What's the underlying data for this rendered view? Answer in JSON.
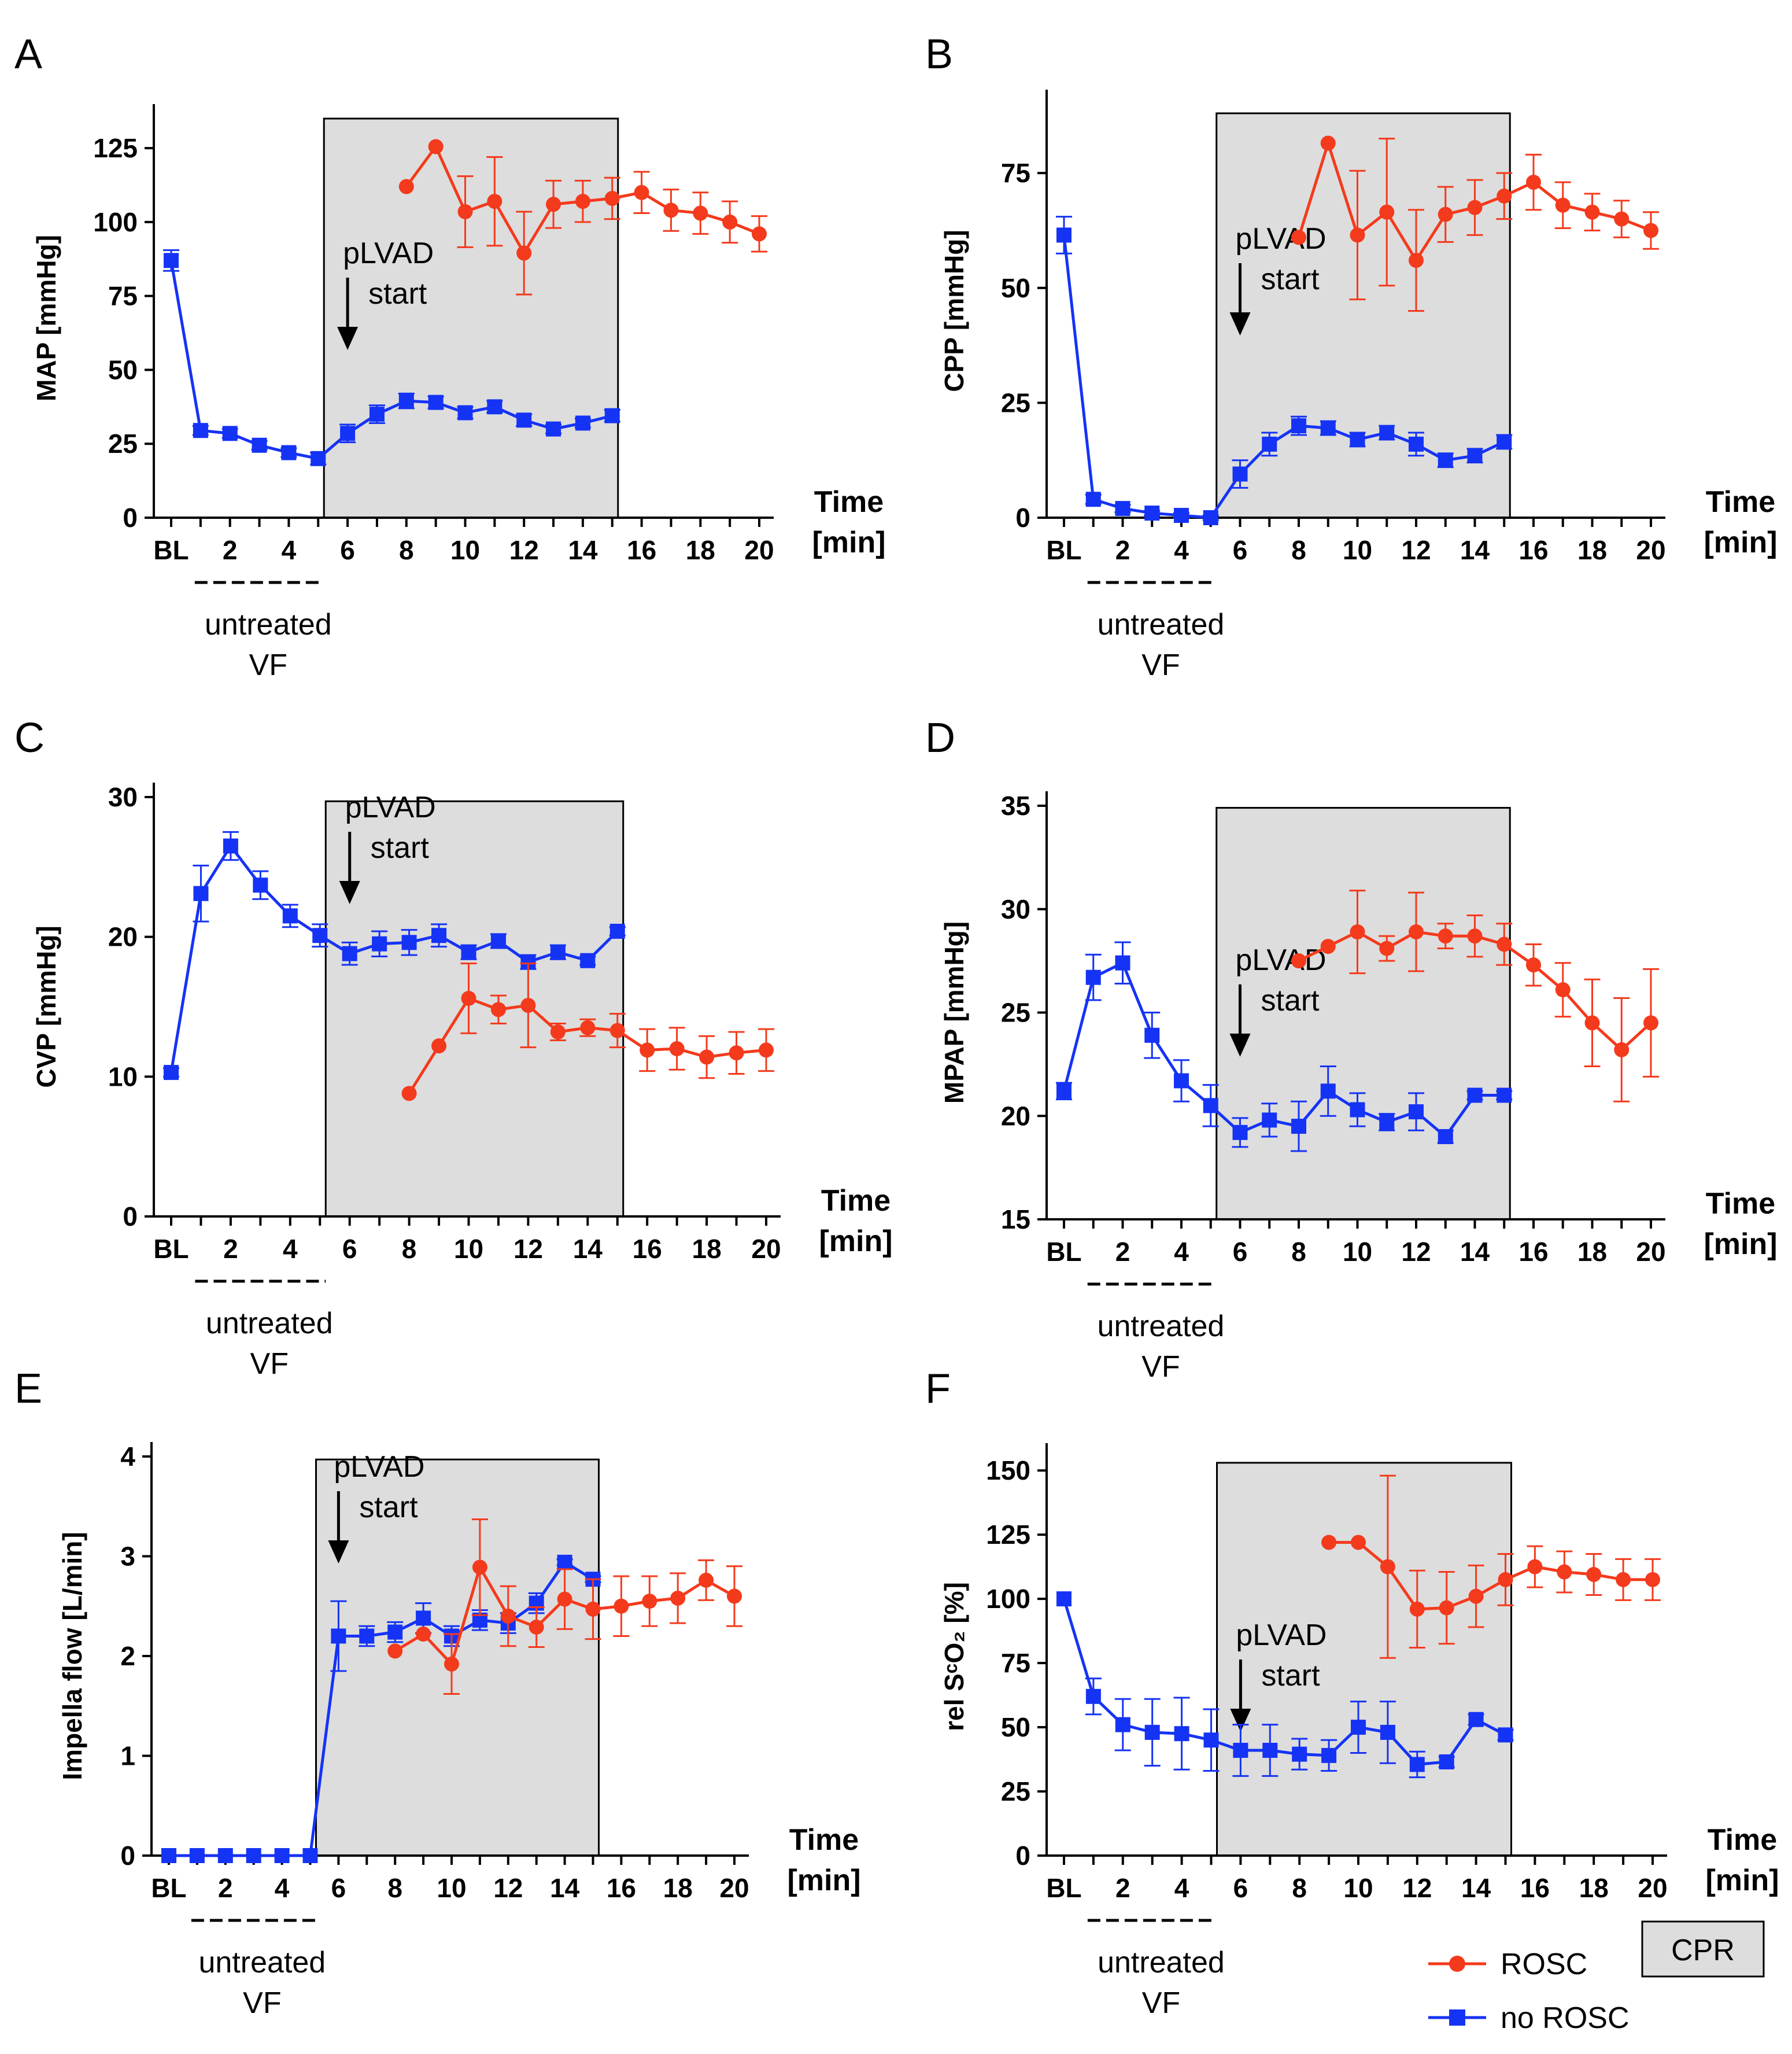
{
  "colors": {
    "rosc": "#f43a1c",
    "no_rosc": "#1533f5",
    "cpr_fill": "#dddddd"
  },
  "legend": {
    "rosc": "ROSC",
    "no_rosc": "no ROSC",
    "cpr": "CPR"
  },
  "chart_data": [
    {
      "type": "line",
      "panel": "A",
      "ylabel": "MAP [mmHg]",
      "ylim": [
        0,
        135
      ],
      "yticks": [
        "0",
        "25",
        "50",
        "75",
        "100",
        "125"
      ],
      "ytick_values": [
        0,
        25,
        50,
        75,
        100,
        125
      ],
      "xtick_labels": [
        "BL",
        "2",
        "4",
        "6",
        "8",
        "10",
        "12",
        "14",
        "16",
        "18",
        "20"
      ],
      "xlabel_line1": "Time",
      "xlabel_line2": "[min]",
      "annotation_line1": "pLVAD",
      "annotation_line2": "start",
      "annotation_x": 6,
      "untreated_label_line1": "untreated",
      "untreated_label_line2": "VF",
      "cpr_region": [
        5,
        15
      ],
      "cpr_top": 135,
      "series": [
        {
          "name": "no ROSC",
          "marker": "square",
          "x": [
            0,
            1,
            2,
            3,
            4,
            5,
            6,
            7,
            8,
            9,
            10,
            11,
            12,
            13,
            14,
            15
          ],
          "values": [
            87,
            29.5,
            28.5,
            24.5,
            22,
            20,
            28.5,
            35,
            39.5,
            39,
            35.5,
            37.5,
            33,
            30,
            32,
            34.5
          ],
          "err": [
            3.5,
            1.5,
            1.5,
            1.5,
            1.5,
            2,
            3,
            3,
            2.5,
            2,
            2,
            2,
            2,
            1.5,
            1.5,
            2
          ]
        },
        {
          "name": "ROSC",
          "marker": "circle",
          "x": [
            8,
            9,
            10,
            11,
            12,
            13,
            14,
            15,
            16,
            17,
            18,
            19,
            20
          ],
          "values": [
            112,
            125.5,
            103.5,
            107,
            89.5,
            106,
            107,
            108,
            110,
            104,
            103,
            100,
            96
          ],
          "err": [
            0,
            0,
            12,
            15,
            14,
            8,
            7,
            7,
            7,
            7,
            7,
            7,
            6
          ]
        }
      ]
    },
    {
      "type": "line",
      "panel": "B",
      "ylabel": "CPP [mmHg]",
      "ylim": [
        0,
        90
      ],
      "yticks": [
        "0",
        "25",
        "50",
        "75"
      ],
      "ytick_values": [
        0,
        25,
        50,
        75
      ],
      "xtick_labels": [
        "BL",
        "2",
        "4",
        "6",
        "8",
        "10",
        "12",
        "14",
        "16",
        "18",
        "20"
      ],
      "xlabel_line1": "Time",
      "xlabel_line2": "[min]",
      "annotation_line1": "pLVAD",
      "annotation_line2": "start",
      "annotation_x": 6,
      "untreated_label_line1": "untreated",
      "untreated_label_line2": "VF",
      "cpr_region": [
        5,
        15
      ],
      "cpr_top": 88,
      "series": [
        {
          "name": "no ROSC",
          "marker": "square",
          "x": [
            0,
            1,
            2,
            3,
            4,
            5,
            6,
            7,
            8,
            9,
            10,
            11,
            12,
            13,
            14,
            15
          ],
          "values": [
            61.5,
            4,
            2,
            1,
            0.5,
            0,
            9.5,
            16,
            20,
            19.5,
            17,
            18.5,
            16,
            12.5,
            13.5,
            16.5
          ],
          "err": [
            4,
            1,
            0.8,
            0.5,
            0.5,
            0.5,
            3,
            2.5,
            2,
            1.5,
            1.5,
            1.5,
            2.5,
            1.5,
            1.5,
            1.5
          ]
        },
        {
          "name": "ROSC",
          "marker": "circle",
          "x": [
            8,
            9,
            10,
            11,
            12,
            13,
            14,
            15,
            16,
            17,
            18,
            19,
            20
          ],
          "values": [
            61,
            81.5,
            61.5,
            66.5,
            56,
            66,
            67.5,
            70,
            73,
            68,
            66.5,
            65,
            62.5
          ],
          "err": [
            0,
            0,
            14,
            16,
            11,
            6,
            6,
            5,
            6,
            5,
            4,
            4,
            4
          ]
        }
      ]
    },
    {
      "type": "line",
      "panel": "C",
      "ylabel": "CVP [mmHg]",
      "ylim": [
        0,
        30
      ],
      "yticks": [
        "0",
        "10",
        "20",
        "30"
      ],
      "ytick_values": [
        0,
        10,
        20,
        30
      ],
      "xtick_labels": [
        "BL",
        "2",
        "4",
        "6",
        "8",
        "10",
        "12",
        "14",
        "16",
        "18",
        "20"
      ],
      "xlabel_line1": "Time",
      "xlabel_line2": "[min]",
      "annotation_line1": "pLVAD",
      "annotation_line2": "start",
      "annotation_x": 6,
      "untreated_label_line1": "untreated",
      "untreated_label_line2": "VF",
      "cpr_region": [
        5,
        15
      ],
      "cpr_top": 29.7,
      "series": [
        {
          "name": "no ROSC",
          "marker": "square",
          "x": [
            0,
            1,
            2,
            3,
            4,
            5,
            6,
            7,
            8,
            9,
            10,
            11,
            12,
            13,
            14,
            15
          ],
          "values": [
            10.3,
            23.1,
            26.5,
            23.7,
            21.5,
            20.1,
            18.8,
            19.5,
            19.6,
            20.1,
            18.9,
            19.7,
            18.2,
            18.9,
            18.3,
            20.4
          ],
          "err": [
            0.3,
            2,
            1,
            1,
            0.8,
            0.8,
            0.8,
            0.9,
            0.9,
            0.8,
            0.5,
            0.5,
            0.5,
            0.5,
            0.3,
            0.3
          ]
        },
        {
          "name": "ROSC",
          "marker": "circle",
          "x": [
            8,
            9,
            10,
            11,
            12,
            13,
            14,
            15,
            16,
            17,
            18,
            19,
            20
          ],
          "values": [
            8.8,
            12.2,
            15.6,
            14.8,
            15.1,
            13.2,
            13.5,
            13.3,
            11.9,
            12,
            11.4,
            11.7,
            11.9
          ],
          "err": [
            0,
            0,
            2.5,
            1,
            3,
            0.6,
            0.6,
            1.2,
            1.5,
            1.5,
            1.5,
            1.5,
            1.5
          ]
        }
      ]
    },
    {
      "type": "line",
      "panel": "D",
      "ylabel": "MPAP [mmHg]",
      "ylim": [
        15,
        35
      ],
      "yticks": [
        "15",
        "20",
        "25",
        "30",
        "35"
      ],
      "ytick_values": [
        15,
        20,
        25,
        30,
        35
      ],
      "xtick_labels": [
        "BL",
        "2",
        "4",
        "6",
        "8",
        "10",
        "12",
        "14",
        "16",
        "18",
        "20"
      ],
      "xlabel_line1": "Time",
      "xlabel_line2": "[min]",
      "annotation_line1": "pLVAD",
      "annotation_line2": "start",
      "annotation_x": 6,
      "untreated_label_line1": "untreated",
      "untreated_label_line2": "VF",
      "cpr_region": [
        5,
        15
      ],
      "cpr_top": 34.9,
      "series": [
        {
          "name": "no ROSC",
          "marker": "square",
          "x": [
            0,
            1,
            2,
            3,
            4,
            5,
            6,
            7,
            8,
            9,
            10,
            11,
            12,
            13,
            14,
            15
          ],
          "values": [
            21.2,
            26.7,
            27.4,
            23.9,
            21.7,
            20.5,
            19.2,
            19.8,
            19.5,
            21.2,
            20.3,
            19.7,
            20.2,
            19,
            21,
            21
          ],
          "err": [
            0.4,
            1.1,
            1,
            1.1,
            1,
            1,
            0.7,
            0.8,
            1.2,
            1.2,
            0.8,
            0.4,
            0.9,
            0.3,
            0.2,
            0.2
          ]
        },
        {
          "name": "ROSC",
          "marker": "circle",
          "x": [
            8,
            9,
            10,
            11,
            12,
            13,
            14,
            15,
            16,
            17,
            18,
            19,
            20
          ],
          "values": [
            27.5,
            28.2,
            28.9,
            28.1,
            28.9,
            28.7,
            28.7,
            28.3,
            27.3,
            26.1,
            24.5,
            23.2,
            24.5
          ],
          "err": [
            0,
            0,
            2,
            0.6,
            1.9,
            0.6,
            1,
            1,
            1,
            1.3,
            2.1,
            2.5,
            2.6
          ]
        }
      ]
    },
    {
      "type": "line",
      "panel": "E",
      "ylabel": "Impella flow [L/min]",
      "ylim": [
        0,
        4
      ],
      "yticks": [
        "0",
        "1",
        "2",
        "3",
        "4"
      ],
      "ytick_values": [
        0,
        1,
        2,
        3,
        4
      ],
      "xtick_labels": [
        "BL",
        "2",
        "4",
        "6",
        "8",
        "10",
        "12",
        "14",
        "16",
        "18",
        "20"
      ],
      "xlabel_line1": "Time",
      "xlabel_line2": "[min]",
      "annotation_line1": "pLVAD",
      "annotation_line2": "start",
      "annotation_x": 6,
      "untreated_label_line1": "untreated",
      "untreated_label_line2": "VF",
      "cpr_region": [
        5,
        15
      ],
      "cpr_top": 3.97,
      "series": [
        {
          "name": "no ROSC",
          "marker": "square",
          "x": [
            0,
            1,
            2,
            3,
            4,
            5,
            6,
            7,
            8,
            9,
            10,
            11,
            12,
            13,
            14,
            15
          ],
          "values": [
            0,
            0,
            0,
            0,
            0,
            0,
            2.2,
            2.2,
            2.24,
            2.38,
            2.2,
            2.36,
            2.33,
            2.53,
            2.94,
            2.77
          ],
          "err": [
            0,
            0,
            0,
            0,
            0,
            0,
            0.35,
            0.1,
            0.1,
            0.15,
            0.1,
            0.1,
            0.1,
            0.1,
            0.03,
            0.03
          ]
        },
        {
          "name": "ROSC",
          "marker": "circle",
          "x": [
            8,
            9,
            10,
            11,
            12,
            13,
            14,
            15,
            16,
            17,
            18,
            19,
            20
          ],
          "values": [
            2.05,
            2.22,
            1.92,
            2.89,
            2.4,
            2.29,
            2.57,
            2.47,
            2.5,
            2.55,
            2.58,
            2.76,
            2.6
          ],
          "err": [
            0,
            0,
            0.3,
            0.48,
            0.3,
            0.2,
            0.3,
            0.3,
            0.3,
            0.25,
            0.25,
            0.2,
            0.3
          ]
        }
      ]
    },
    {
      "type": "line",
      "panel": "F",
      "ylabel": "rel SᶜO₂ [%]",
      "ylim": [
        0,
        155
      ],
      "yticks": [
        "0",
        "25",
        "50",
        "75",
        "100",
        "125",
        "150"
      ],
      "ytick_values": [
        0,
        25,
        50,
        75,
        100,
        125,
        150
      ],
      "xtick_labels": [
        "BL",
        "2",
        "4",
        "6",
        "8",
        "10",
        "12",
        "14",
        "16",
        "18",
        "20"
      ],
      "xlabel_line1": "Time",
      "xlabel_line2": "[min]",
      "annotation_line1": "pLVAD",
      "annotation_line2": "start",
      "annotation_x": 6,
      "untreated_label_line1": "untreated",
      "untreated_label_line2": "VF",
      "cpr_region": [
        5,
        15
      ],
      "cpr_top": 153,
      "series": [
        {
          "name": "no ROSC",
          "marker": "square",
          "x": [
            0,
            1,
            2,
            3,
            4,
            5,
            6,
            7,
            8,
            9,
            10,
            11,
            12,
            13,
            14,
            15
          ],
          "values": [
            100,
            62,
            51,
            48,
            47.5,
            45,
            41,
            41,
            39.5,
            39,
            50,
            48,
            35.5,
            36.5,
            53,
            47
          ],
          "err": [
            0,
            7,
            10,
            13,
            14,
            12,
            10,
            10,
            6,
            6,
            10,
            12,
            5,
            2,
            2,
            2
          ]
        },
        {
          "name": "ROSC",
          "marker": "circle",
          "x": [
            9,
            10,
            11,
            12,
            13,
            14,
            15,
            16,
            17,
            18,
            19,
            20
          ],
          "values": [
            122,
            122,
            112.5,
            96,
            96.5,
            101,
            107.5,
            112.5,
            110.5,
            109.5,
            107.5,
            107.5
          ],
          "err": [
            0,
            0,
            35.5,
            15,
            14,
            12,
            10,
            8,
            8,
            8,
            8,
            8
          ]
        }
      ]
    }
  ]
}
